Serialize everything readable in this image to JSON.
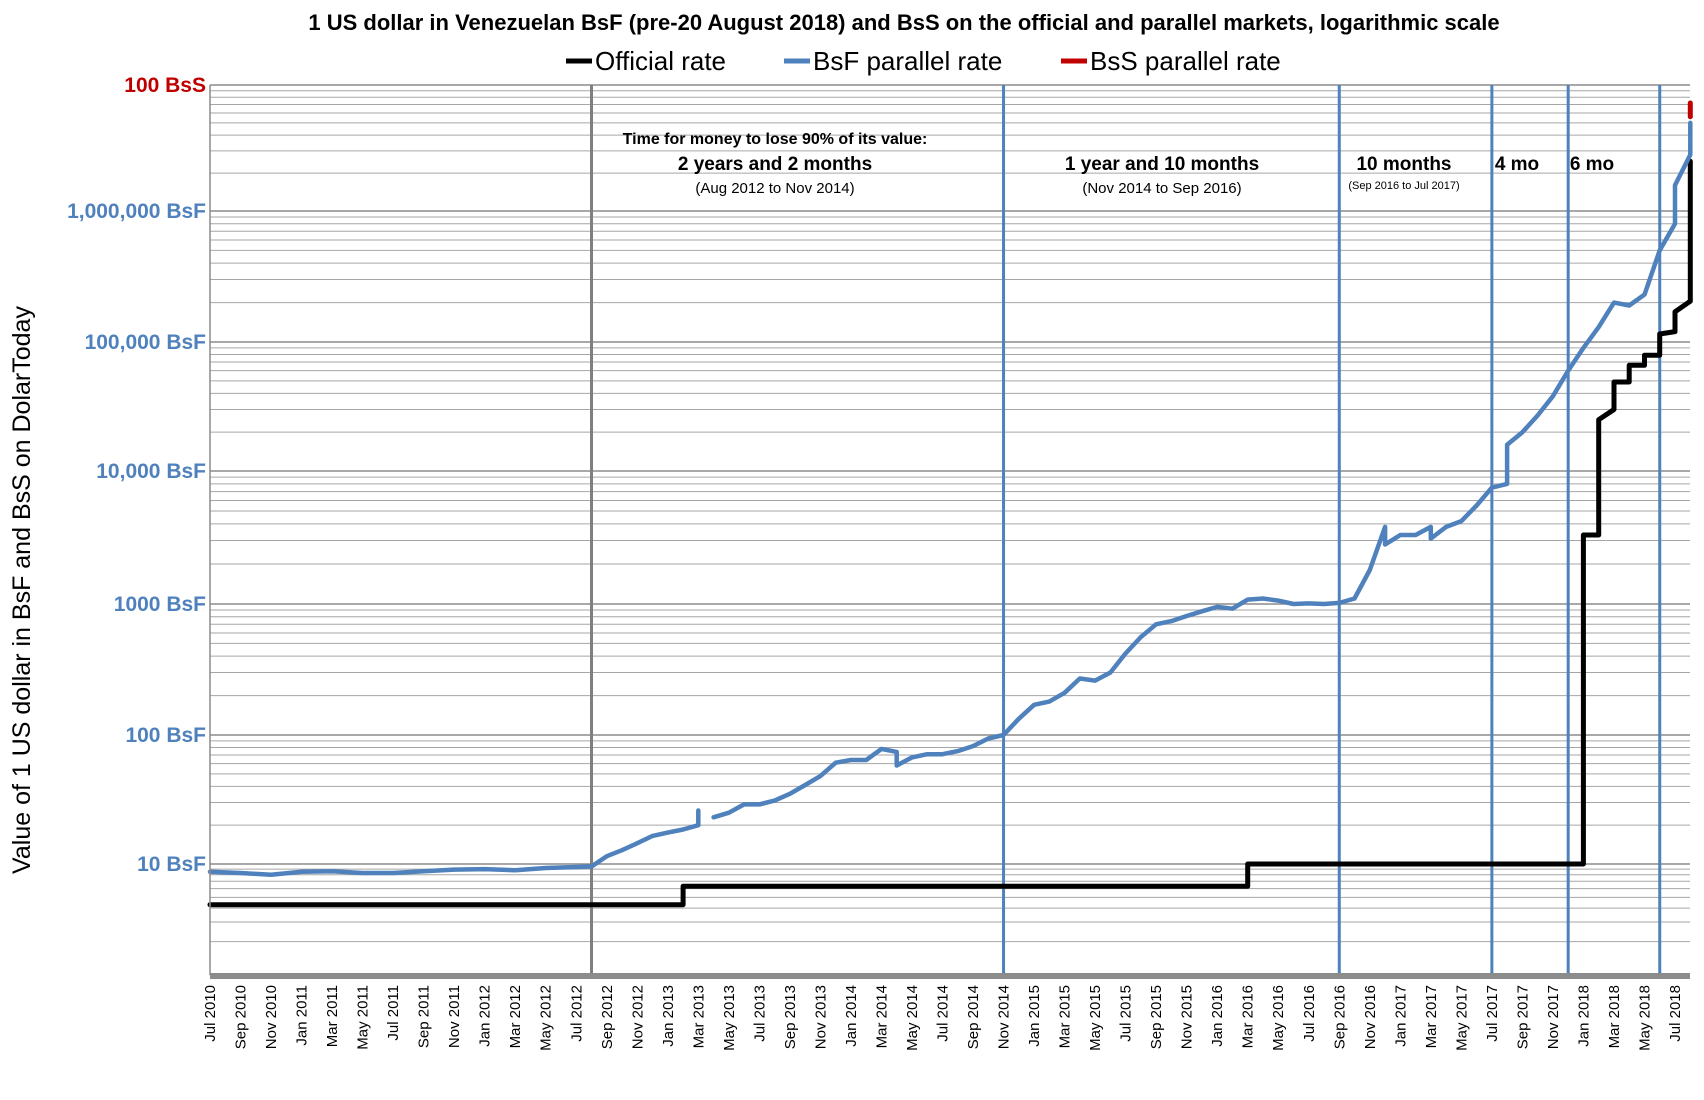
{
  "chart_data": {
    "type": "line",
    "title": "1 US dollar in Venezuelan BsF (pre-20 August 2018) and BsS on the official and parallel markets, logarithmic scale",
    "ylabel": "Value of 1 US dollar in BsF and BsS on DolarToday",
    "xlabel": "",
    "y_scale": "log",
    "ylim_bsf": [
      1,
      100000000
    ],
    "grid": true,
    "legend": "top-center",
    "y_ticks": [
      {
        "value": 10,
        "label": "10 BsF",
        "color": "#4f81bd"
      },
      {
        "value": 100,
        "label": "100 BsF",
        "color": "#4f81bd"
      },
      {
        "value": 1000,
        "label": "1000 BsF",
        "color": "#4f81bd"
      },
      {
        "value": 10000,
        "label": "10,000 BsF",
        "color": "#4f81bd"
      },
      {
        "value": 100000,
        "label": "100,000 BsF",
        "color": "#4f81bd"
      },
      {
        "value": 1000000,
        "label": "1,000,000 BsF",
        "color": "#4f81bd"
      },
      {
        "value": 10000000,
        "label": "100 BsS",
        "color": "#c00000"
      }
    ],
    "x_ticks": [
      "Jul 2010",
      "Sep 2010",
      "Nov 2010",
      "Jan 2011",
      "Mar 2011",
      "May 2011",
      "Jul 2011",
      "Sep 2011",
      "Nov 2011",
      "Jan 2012",
      "Mar 2012",
      "May 2012",
      "Jul 2012",
      "Sep 2012",
      "Nov 2012",
      "Jan 2013",
      "Mar 2013",
      "May 2013",
      "Jul 2013",
      "Sep 2013",
      "Nov 2013",
      "Jan 2014",
      "Mar 2014",
      "May 2014",
      "Jul 2014",
      "Sep 2014",
      "Nov 2014",
      "Jan 2015",
      "Mar 2015",
      "May 2015",
      "Jul 2015",
      "Sep 2015",
      "Nov 2015",
      "Jan 2016",
      "Mar 2016",
      "May 2016",
      "Jul 2016",
      "Sep 2016",
      "Nov 2016",
      "Jan 2017",
      "Mar 2017",
      "May 2017",
      "Jul 2017",
      "Sep 2017",
      "Nov 2017",
      "Jan 2018",
      "Mar 2018",
      "May 2018",
      "Jul 2018"
    ],
    "series": [
      {
        "name": "Official rate",
        "color": "#000000",
        "step": true,
        "points": [
          [
            "2010-07",
            4.3
          ],
          [
            "2013-02",
            4.3
          ],
          [
            "2013-02",
            6.3
          ],
          [
            "2016-03",
            6.3
          ],
          [
            "2016-03",
            10
          ],
          [
            "2018-01",
            10
          ],
          [
            "2018-01",
            3300
          ],
          [
            "2018-02",
            3300
          ],
          [
            "2018-02",
            25000
          ],
          [
            "2018-03",
            30000
          ],
          [
            "2018-03",
            38000
          ],
          [
            "2018-03",
            49000
          ],
          [
            "2018-04",
            49000
          ],
          [
            "2018-04",
            60000
          ],
          [
            "2018-04",
            66000
          ],
          [
            "2018-05",
            66000
          ],
          [
            "2018-05",
            79000
          ],
          [
            "2018-06",
            79000
          ],
          [
            "2018-06",
            115000
          ],
          [
            "2018-07",
            120000
          ],
          [
            "2018-07",
            170000
          ],
          [
            "2018-08",
            205000
          ],
          [
            "2018-08",
            248000
          ],
          [
            "2018-08",
            2480000
          ]
        ]
      },
      {
        "name": "BsF parallel rate",
        "color": "#4f81bd",
        "segments": [
          [
            [
              "2010-07",
              8.5
            ],
            [
              "2010-09",
              8.3
            ],
            [
              "2010-11",
              8.0
            ],
            [
              "2011-01",
              8.5
            ],
            [
              "2011-03",
              8.6
            ],
            [
              "2011-05",
              8.3
            ],
            [
              "2011-07",
              8.3
            ],
            [
              "2011-09",
              8.6
            ],
            [
              "2011-11",
              8.9
            ],
            [
              "2012-01",
              9.0
            ],
            [
              "2012-03",
              8.8
            ],
            [
              "2012-05",
              9.2
            ],
            [
              "2012-07",
              9.4
            ],
            [
              "2012-08",
              9.5
            ],
            [
              "2012-09",
              11.5
            ],
            [
              "2012-10",
              12.8
            ],
            [
              "2012-11",
              14.5
            ],
            [
              "2012-12",
              16.5
            ],
            [
              "2013-01",
              17.5
            ],
            [
              "2013-02",
              18.5
            ],
            [
              "2013-03",
              20
            ],
            [
              "2013-03",
              26
            ],
            [
              "2013-03",
              22
            ]
          ],
          [
            [
              "2013-04",
              23
            ],
            [
              "2013-05",
              25
            ],
            [
              "2013-06",
              29
            ],
            [
              "2013-07",
              29
            ],
            [
              "2013-08",
              31
            ],
            [
              "2013-09",
              35
            ],
            [
              "2013-10",
              41
            ],
            [
              "2013-11",
              48
            ],
            [
              "2013-12",
              61
            ],
            [
              "2014-01",
              64
            ],
            [
              "2014-02",
              64
            ],
            [
              "2014-03",
              78
            ],
            [
              "2014-04",
              74
            ],
            [
              "2014-04",
              58
            ],
            [
              "2014-05",
              67
            ],
            [
              "2014-06",
              71
            ],
            [
              "2014-07",
              71
            ],
            [
              "2014-08",
              75
            ],
            [
              "2014-09",
              82
            ],
            [
              "2014-10",
              94
            ],
            [
              "2014-11",
              100
            ],
            [
              "2014-12",
              133
            ],
            [
              "2015-01",
              170
            ],
            [
              "2015-02",
              180
            ],
            [
              "2015-03",
              210
            ],
            [
              "2015-04",
              270
            ],
            [
              "2015-05",
              260
            ],
            [
              "2015-06",
              300
            ],
            [
              "2015-07",
              420
            ],
            [
              "2015-08",
              560
            ],
            [
              "2015-09",
              700
            ],
            [
              "2015-10",
              740
            ],
            [
              "2015-11",
              810
            ],
            [
              "2015-12",
              880
            ],
            [
              "2016-01",
              950
            ],
            [
              "2016-02",
              920
            ],
            [
              "2016-03",
              1080
            ],
            [
              "2016-04",
              1100
            ],
            [
              "2016-05",
              1060
            ],
            [
              "2016-06",
              1000
            ],
            [
              "2016-07",
              1010
            ],
            [
              "2016-08",
              1000
            ],
            [
              "2016-09",
              1020
            ],
            [
              "2016-10",
              1100
            ],
            [
              "2016-11",
              1800
            ],
            [
              "2016-12",
              3800
            ],
            [
              "2016-12",
              2800
            ],
            [
              "2017-01",
              3300
            ],
            [
              "2017-02",
              3300
            ],
            [
              "2017-03",
              3800
            ],
            [
              "2017-03",
              3100
            ],
            [
              "2017-04",
              3800
            ],
            [
              "2017-05",
              4200
            ],
            [
              "2017-06",
              5500
            ],
            [
              "2017-07",
              7500
            ],
            [
              "2017-08",
              8000
            ],
            [
              "2017-08",
              9800
            ],
            [
              "2017-08",
              16000
            ],
            [
              "2017-09",
              20000
            ],
            [
              "2017-10",
              27000
            ],
            [
              "2017-11",
              38000
            ],
            [
              "2017-12",
              60000
            ],
            [
              "2018-01",
              90000
            ],
            [
              "2018-02",
              130000
            ],
            [
              "2018-03",
              200000
            ],
            [
              "2018-04",
              190000
            ],
            [
              "2018-05",
              230000
            ],
            [
              "2018-06",
              500000
            ],
            [
              "2018-07",
              800000
            ],
            [
              "2018-07",
              1600000
            ],
            [
              "2018-08",
              2800000
            ],
            [
              "2018-08",
              3200000
            ],
            [
              "2018-08",
              3500000
            ],
            [
              "2018-08",
              5000000
            ]
          ]
        ]
      },
      {
        "name": "BsS parallel rate",
        "color": "#c00000",
        "points": [
          [
            "2018-08",
            5600000
          ],
          [
            "2018-08",
            6800000
          ],
          [
            "2018-08",
            7200000
          ]
        ]
      }
    ],
    "vertical_lines": [
      {
        "date": "2012-08",
        "color": "#7f7f7f"
      },
      {
        "date": "2014-11",
        "color": "#4f81bd"
      },
      {
        "date": "2016-09",
        "color": "#4f81bd"
      },
      {
        "date": "2017-07",
        "color": "#4f81bd"
      },
      {
        "date": "2017-12",
        "color": "#4f81bd"
      },
      {
        "date": "2018-06",
        "color": "#4f81bd"
      }
    ],
    "annotations": {
      "a1_line1": "Time for money to lose 90% of its value:",
      "a1_line2": "2 years and 2 months",
      "a1_line3": "(Aug 2012 to Nov 2014)",
      "a2_line1": "1 year and 10 months",
      "a2_line2": "(Nov 2014  to Sep 2016)",
      "a3_line1": "10 months",
      "a3_line2": "(Sep 2016 to Jul 2017)",
      "a4_line1": "4 mo",
      "a5_line1": "6 mo"
    }
  }
}
